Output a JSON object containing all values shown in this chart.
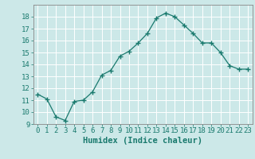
{
  "xlabel": "Humidex (Indice chaleur)",
  "x": [
    0,
    1,
    2,
    3,
    4,
    5,
    6,
    7,
    8,
    9,
    10,
    11,
    12,
    13,
    14,
    15,
    16,
    17,
    18,
    19,
    20,
    21,
    22,
    23
  ],
  "y": [
    11.5,
    11.1,
    9.6,
    9.3,
    10.9,
    11.0,
    11.7,
    13.1,
    13.5,
    14.7,
    15.1,
    15.8,
    16.6,
    17.9,
    18.3,
    18.0,
    17.3,
    16.6,
    15.8,
    15.8,
    15.0,
    13.9,
    13.6,
    13.6
  ],
  "line_color": "#1a7a6e",
  "marker": "+",
  "marker_size": 4,
  "bg_color": "#cce8e8",
  "grid_color": "#ffffff",
  "ylim": [
    9,
    19
  ],
  "yticks": [
    9,
    10,
    11,
    12,
    13,
    14,
    15,
    16,
    17,
    18
  ],
  "xticks": [
    0,
    1,
    2,
    3,
    4,
    5,
    6,
    7,
    8,
    9,
    10,
    11,
    12,
    13,
    14,
    15,
    16,
    17,
    18,
    19,
    20,
    21,
    22,
    23
  ],
  "tick_label_fontsize": 6.5,
  "xlabel_fontsize": 7.5,
  "text_color": "#1a7a6e",
  "spine_color": "#888888"
}
